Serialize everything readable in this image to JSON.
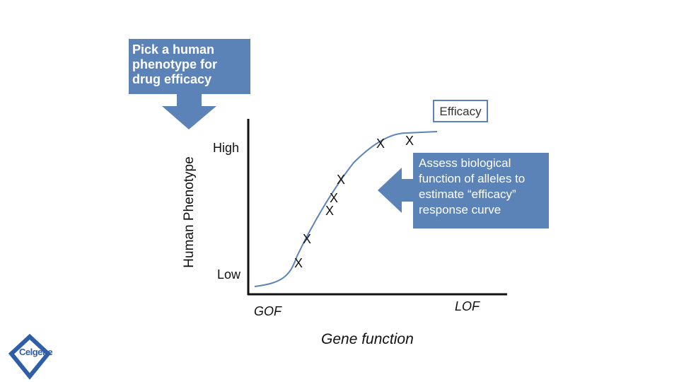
{
  "callout_top": {
    "text": "Pick a human\nphenotype for\ndrug efficacy"
  },
  "efficacy_label": "Efficacy",
  "y_axis_label": "Human Phenotype",
  "y_high": "High",
  "y_low": "Low",
  "x_left": "GOF",
  "x_right": "LOF",
  "x_axis_label": "Gene function",
  "callout_right": {
    "text": "Assess biological\nfunction of alleles to\nestimate “efficacy”\nresponse curve"
  },
  "marker_glyph": "X",
  "logo_text": "Celgene",
  "colors": {
    "accent": "#5b83b8",
    "axis": "#111111"
  }
}
